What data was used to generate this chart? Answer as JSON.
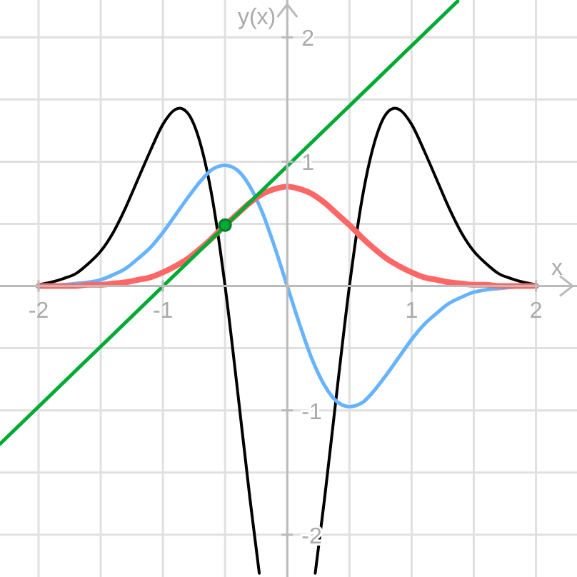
{
  "chart_data": {
    "type": "line",
    "xlabel": "x",
    "ylabel": "y(x)",
    "xlim": [
      -2.31,
      2.33
    ],
    "ylim": [
      -2.34,
      2.3
    ],
    "xticks": [
      -2,
      {
        "value": -1.5,
        "label": null
      },
      -1,
      {
        "value": -0.5,
        "label": null
      },
      {
        "value": 0,
        "label": null
      },
      {
        "value": 0.5,
        "label": null
      },
      1,
      {
        "value": 1.5,
        "label": null
      },
      2
    ],
    "yticks": [
      -2,
      {
        "value": -1.5,
        "label": null
      },
      -1,
      {
        "value": -0.5,
        "label": null
      },
      {
        "value": 0,
        "label": null
      },
      {
        "value": 0.5,
        "label": null
      },
      1,
      {
        "value": 1.5,
        "label": null
      },
      2
    ],
    "grid": true,
    "line_style": "solid",
    "x": [
      -2,
      -1.9,
      -1.8,
      -1.7,
      -1.6,
      -1.5,
      -1.4,
      -1.3,
      -1.2,
      -1.1,
      -1,
      -0.9,
      -0.8,
      -0.7,
      -0.6,
      -0.5,
      -0.4,
      -0.3,
      -0.2,
      -0.1,
      0,
      0.1,
      0.2,
      0.3,
      0.4,
      0.5,
      0.6,
      0.7,
      0.8,
      0.9,
      1,
      1.1,
      1.2,
      1.3,
      1.4,
      1.5,
      1.6,
      1.7,
      1.8,
      1.9,
      2
    ],
    "series": [
      {
        "color": "#000000",
        "x": [
          -2,
          -1.9,
          -1.8,
          -1.7,
          -1.6,
          -1.5,
          -1.4,
          -1.3,
          -1.2,
          -1.1,
          -1,
          -0.9,
          -0.866,
          -0.8,
          -0.7,
          -0.6,
          -0.5,
          -0.4,
          -0.3,
          -0.225,
          0,
          0.225,
          0.3,
          0.4,
          0.5,
          0.6,
          0.7,
          0.8,
          0.866,
          0.9,
          1,
          1.1,
          1.2,
          1.3,
          1.4,
          1.5,
          1.6,
          1.7,
          1.8,
          1.9,
          2
        ],
        "values": [
          0.01,
          0.03,
          0.06,
          0.1,
          0.18,
          0.28,
          0.43,
          0.63,
          0.86,
          1.09,
          1.3,
          1.42,
          1.43,
          1.39,
          1.15,
          0.69,
          0,
          -0.84,
          -1.71,
          -2.31,
          null,
          -2.31,
          -1.71,
          -0.84,
          0,
          0.69,
          1.15,
          1.39,
          1.43,
          1.42,
          1.3,
          1.09,
          0.86,
          0.63,
          0.43,
          0.28,
          0.18,
          0.1,
          0.06,
          0.03,
          0.01
        ]
      },
      {
        "color": "#66b3ff",
        "values": [
          0,
          0,
          0.01,
          0.02,
          0.03,
          0.05,
          0.09,
          0.14,
          0.22,
          0.31,
          0.43,
          0.57,
          0.71,
          0.84,
          0.94,
          0.97,
          0.93,
          0.8,
          0.59,
          0.31,
          0,
          -0.31,
          -0.59,
          -0.8,
          -0.93,
          -0.97,
          -0.94,
          -0.84,
          -0.71,
          -0.57,
          -0.43,
          -0.31,
          -0.22,
          -0.14,
          -0.09,
          -0.05,
          -0.03,
          -0.02,
          -0.01,
          0,
          0
        ]
      },
      {
        "color": "#ff6666",
        "values": [
          0,
          0,
          0,
          0,
          0.01,
          0.01,
          0.02,
          0.03,
          0.05,
          0.07,
          0.11,
          0.16,
          0.22,
          0.3,
          0.39,
          0.49,
          0.58,
          0.67,
          0.74,
          0.78,
          0.8,
          0.78,
          0.74,
          0.67,
          0.58,
          0.49,
          0.39,
          0.3,
          0.22,
          0.16,
          0.11,
          0.07,
          0.05,
          0.03,
          0.02,
          0.01,
          0.01,
          0,
          0,
          0,
          0
        ]
      },
      {
        "color": "#00aa33",
        "x": [
          -2.31,
          1.37
        ],
        "values": [
          -1.27,
          2.29
        ]
      },
      {
        "type": "scatter",
        "marker": "circle",
        "color": "#00aa33",
        "x": [
          -0.5
        ],
        "values": [
          0.49
        ]
      }
    ]
  }
}
